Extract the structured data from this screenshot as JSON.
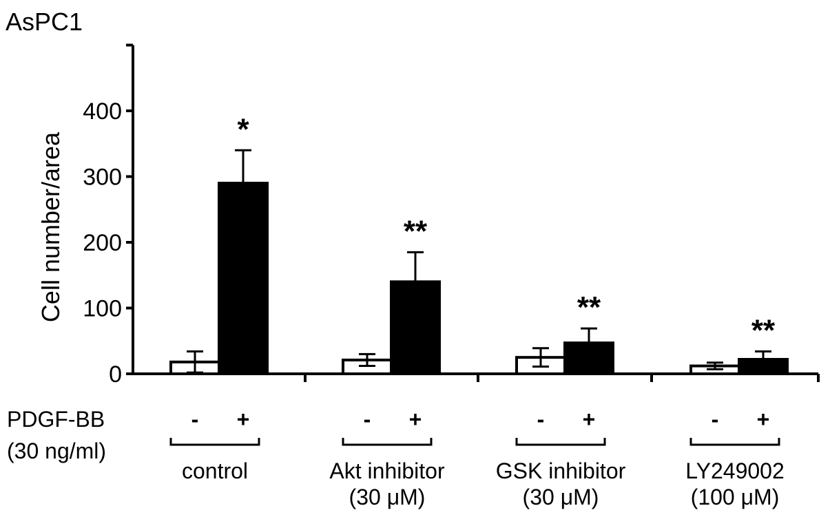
{
  "chart_data": {
    "type": "bar",
    "title": "AsPC1",
    "ylabel": "Cell number/area",
    "ylim": [
      0,
      500
    ],
    "yticks": [
      0,
      100,
      200,
      300,
      400
    ],
    "treatment_label_line1": "PDGF-BB",
    "treatment_label_line2": "(30 ng/ml)",
    "groups": [
      {
        "label_line1": "control",
        "label_line2": "",
        "bars": [
          {
            "sign": "-",
            "value": 18,
            "error": 16,
            "fill": "#ffffff",
            "marker": ""
          },
          {
            "sign": "+",
            "value": 290,
            "error": 50,
            "fill": "#000000",
            "marker": "*"
          }
        ]
      },
      {
        "label_line1": "Akt inhibitor",
        "label_line2": "(30 μM)",
        "bars": [
          {
            "sign": "-",
            "value": 21,
            "error": 9,
            "fill": "#ffffff",
            "marker": ""
          },
          {
            "sign": "+",
            "value": 140,
            "error": 45,
            "fill": "#000000",
            "marker": "**"
          }
        ]
      },
      {
        "label_line1": "GSK inhibitor",
        "label_line2": "(30 μM)",
        "bars": [
          {
            "sign": "-",
            "value": 25,
            "error": 14,
            "fill": "#ffffff",
            "marker": ""
          },
          {
            "sign": "+",
            "value": 47,
            "error": 22,
            "fill": "#000000",
            "marker": "**"
          }
        ]
      },
      {
        "label_line1": "LY249002",
        "label_line2": "(100 μM)",
        "bars": [
          {
            "sign": "-",
            "value": 12,
            "error": 5,
            "fill": "#ffffff",
            "marker": ""
          },
          {
            "sign": "+",
            "value": 22,
            "error": 12,
            "fill": "#000000",
            "marker": "**"
          }
        ]
      }
    ]
  }
}
